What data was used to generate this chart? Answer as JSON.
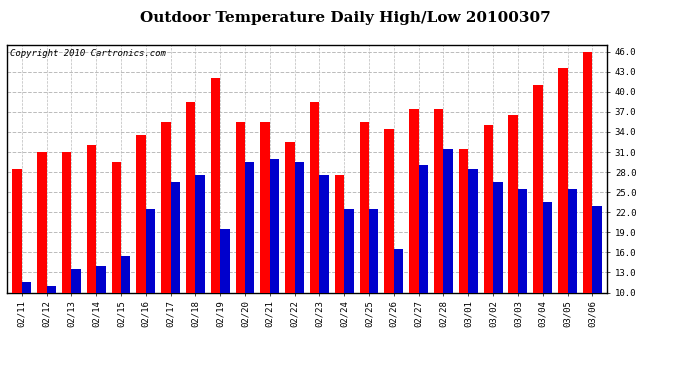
{
  "title": "Outdoor Temperature Daily High/Low 20100307",
  "copyright": "Copyright 2010 Cartronics.com",
  "dates": [
    "02/11",
    "02/12",
    "02/13",
    "02/14",
    "02/15",
    "02/16",
    "02/17",
    "02/18",
    "02/19",
    "02/20",
    "02/21",
    "02/22",
    "02/23",
    "02/24",
    "02/25",
    "02/26",
    "02/27",
    "02/28",
    "03/01",
    "03/02",
    "03/03",
    "03/04",
    "03/05",
    "03/06"
  ],
  "highs": [
    28.5,
    31.0,
    31.0,
    32.0,
    29.5,
    33.5,
    35.5,
    38.5,
    42.0,
    35.5,
    35.5,
    32.5,
    38.5,
    27.5,
    35.5,
    34.5,
    37.5,
    37.5,
    31.5,
    35.0,
    36.5,
    41.0,
    43.5,
    46.0
  ],
  "lows": [
    11.5,
    11.0,
    13.5,
    14.0,
    15.5,
    22.5,
    26.5,
    27.5,
    19.5,
    29.5,
    30.0,
    29.5,
    27.5,
    22.5,
    22.5,
    16.5,
    29.0,
    31.5,
    28.5,
    26.5,
    25.5,
    23.5,
    25.5,
    23.0
  ],
  "high_color": "#ff0000",
  "low_color": "#0000cc",
  "bg_color": "#ffffff",
  "plot_bg_color": "#ffffff",
  "grid_color": "#bbbbbb",
  "ylim": [
    10.0,
    47.0
  ],
  "yticks": [
    10.0,
    13.0,
    16.0,
    19.0,
    22.0,
    25.0,
    28.0,
    31.0,
    34.0,
    37.0,
    40.0,
    43.0,
    46.0
  ],
  "bar_width": 0.38,
  "title_fontsize": 11,
  "tick_fontsize": 6.5,
  "copyright_fontsize": 6.5
}
